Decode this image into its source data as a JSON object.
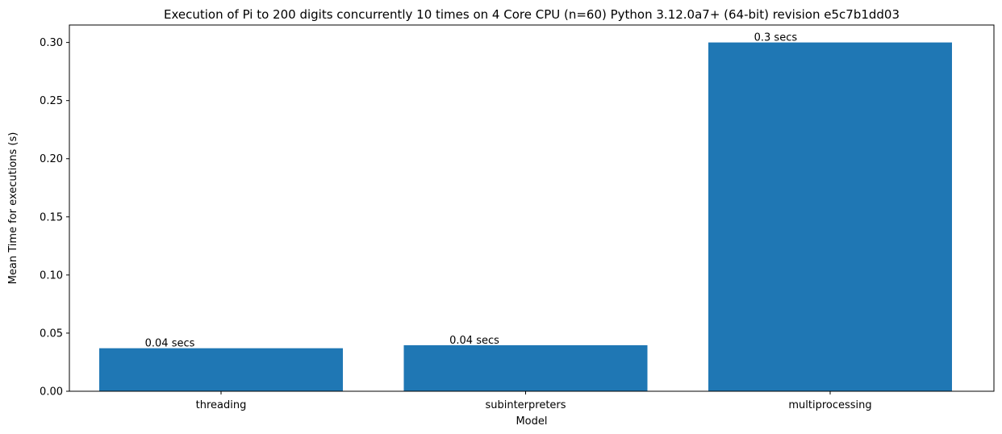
{
  "chart_data": {
    "type": "bar",
    "title": "Execution of Pi to 200 digits concurrently 10 times on 4 Core CPU (n=60) Python 3.12.0a7+ (64-bit) revision e5c7b1dd03",
    "x_label": "Model",
    "y_label": "Mean Time for executions (s)",
    "categories": [
      "threading",
      "subinterpreters",
      "multiprocessing"
    ],
    "values": [
      0.037,
      0.0396,
      0.3
    ],
    "value_labels": [
      "0.04 secs",
      "0.04 secs",
      "0.3 secs"
    ],
    "color": "#1f77b4",
    "ylim": [
      0,
      0.315
    ],
    "yticks": [
      {
        "value": 0,
        "label": "0.00"
      },
      {
        "value": 0.05,
        "label": "0.05"
      },
      {
        "value": 0.1,
        "label": "0.10"
      },
      {
        "value": 0.15,
        "label": "0.15"
      },
      {
        "value": 0.2,
        "label": "0.20"
      },
      {
        "value": 0.25,
        "label": "0.25"
      },
      {
        "value": 0.3,
        "label": "0.30"
      }
    ],
    "grid": false
  }
}
